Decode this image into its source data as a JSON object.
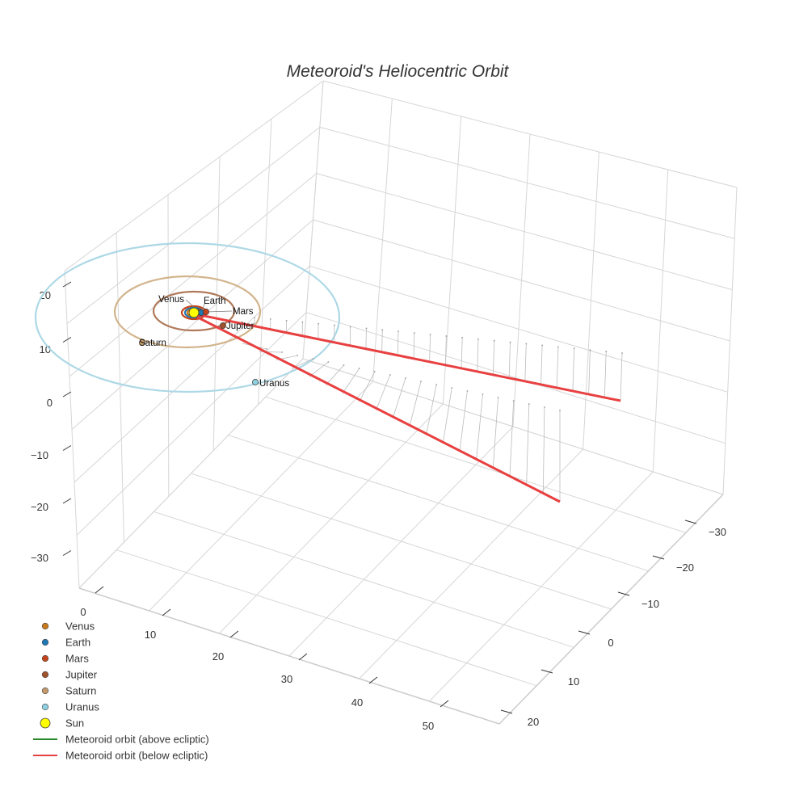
{
  "chart_data": {
    "type": "scatter3d",
    "title": "Meteoroid's Heliocentric Orbit",
    "axes": {
      "x": {
        "ticks": [
          "0",
          "10",
          "20",
          "30",
          "40",
          "50"
        ],
        "range": [
          0,
          55
        ]
      },
      "y": {
        "ticks": [
          "−30",
          "−20",
          "−10",
          "0",
          "10",
          "20"
        ],
        "range": [
          -35,
          25
        ]
      },
      "z": {
        "ticks": [
          "20",
          "10",
          "0",
          "−10",
          "−20",
          "−30"
        ],
        "range": [
          -35,
          25
        ]
      }
    },
    "grid": true,
    "legend_position": "bottom-left",
    "planets": [
      {
        "name": "Venus",
        "label": "Venus",
        "color": "#c97a1c"
      },
      {
        "name": "Earth",
        "label": "Earth",
        "color": "#1f77b4"
      },
      {
        "name": "Mars",
        "label": "Mars",
        "color": "#c4451c"
      },
      {
        "name": "Jupiter",
        "label": "Jupiter",
        "color": "#a0522d"
      },
      {
        "name": "Saturn",
        "label": "Saturn",
        "color": "#c49a6c"
      },
      {
        "name": "Uranus",
        "label": "Uranus",
        "color": "#8fd0e0"
      }
    ],
    "sun": {
      "name": "Sun",
      "color": "#ffff00"
    },
    "orbit_colors": {
      "Venus": "#c97a1c",
      "Earth": "#1f77b4",
      "Mars": "#c4451c",
      "Jupiter": "#b07a5a",
      "Saturn": "#d2b48c",
      "Uranus": "#add8e6"
    },
    "series": [
      {
        "name": "Meteoroid orbit (above ecliptic)",
        "color": "#2a8a2a"
      },
      {
        "name": "Meteoroid orbit (below ecliptic)",
        "color": "#e84040"
      }
    ]
  }
}
